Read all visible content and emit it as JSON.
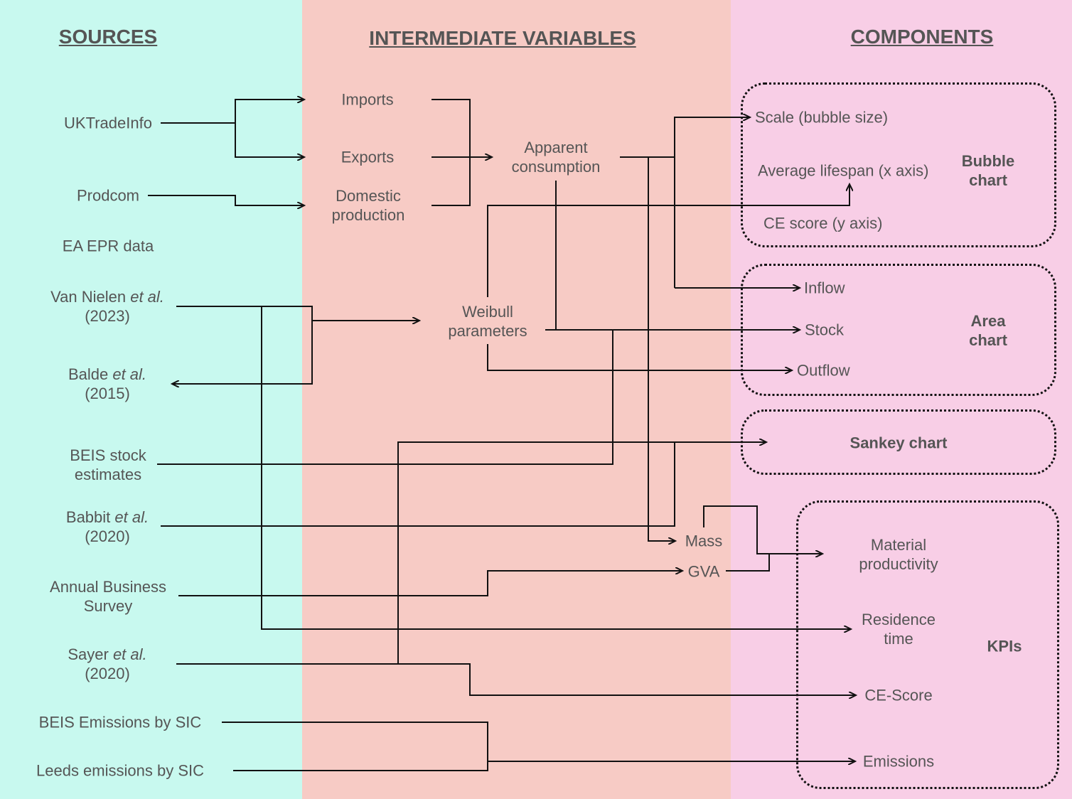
{
  "colors": {
    "sources_bg": "#c8f9ef",
    "intermediate_bg": "#f7cbc5",
    "components_bg": "#f8cee6",
    "line": "#111111",
    "text": "#555555"
  },
  "headers": {
    "sources": "SOURCES",
    "intermediate": "INTERMEDIATE VARIABLES",
    "components": "COMPONENTS"
  },
  "sources": {
    "uktradeinfo": "UKTradeInfo",
    "prodcom": "Prodcom",
    "ea_epr": "EA EPR data",
    "van_nielen": {
      "author": "Van Nielen ",
      "etal": "et al.",
      "year": "(2023)"
    },
    "balde": {
      "author": "Balde ",
      "etal": "et al.",
      "year": "(2015)"
    },
    "beis_stock": {
      "line1": "BEIS stock",
      "line2": "estimates"
    },
    "babbit": {
      "author": "Babbit ",
      "etal": "et al.",
      "year": "(2020)"
    },
    "abs": {
      "line1": "Annual Business",
      "line2": "Survey"
    },
    "sayer": {
      "author": "Sayer ",
      "etal": "et al.",
      "year": "(2020)"
    },
    "beis_emissions": "BEIS Emissions by SIC",
    "leeds_emissions": "Leeds emissions by SIC"
  },
  "intermediate": {
    "imports": "Imports",
    "exports": "Exports",
    "domestic": {
      "line1": "Domestic",
      "line2": "production"
    },
    "apparent": {
      "line1": "Apparent",
      "line2": "consumption"
    },
    "weibull": {
      "line1": "Weibull",
      "line2": "parameters"
    },
    "mass": "Mass",
    "gva": "GVA"
  },
  "components": {
    "bubble": {
      "title_line1": "Bubble",
      "title_line2": "chart",
      "scale": "Scale (bubble size)",
      "lifespan": "Average lifespan (x axis)",
      "ce_score": "CE score (y axis)"
    },
    "area": {
      "title_line1": "Area",
      "title_line2": "chart",
      "inflow": "Inflow",
      "stock": "Stock",
      "outflow": "Outflow"
    },
    "sankey": {
      "title": "Sankey chart"
    },
    "kpis": {
      "title": "KPIs",
      "material": {
        "line1": "Material",
        "line2": "productivity"
      },
      "residence": {
        "line1": "Residence",
        "line2": "time"
      },
      "ce_score": "CE-Score",
      "emissions": "Emissions"
    }
  }
}
